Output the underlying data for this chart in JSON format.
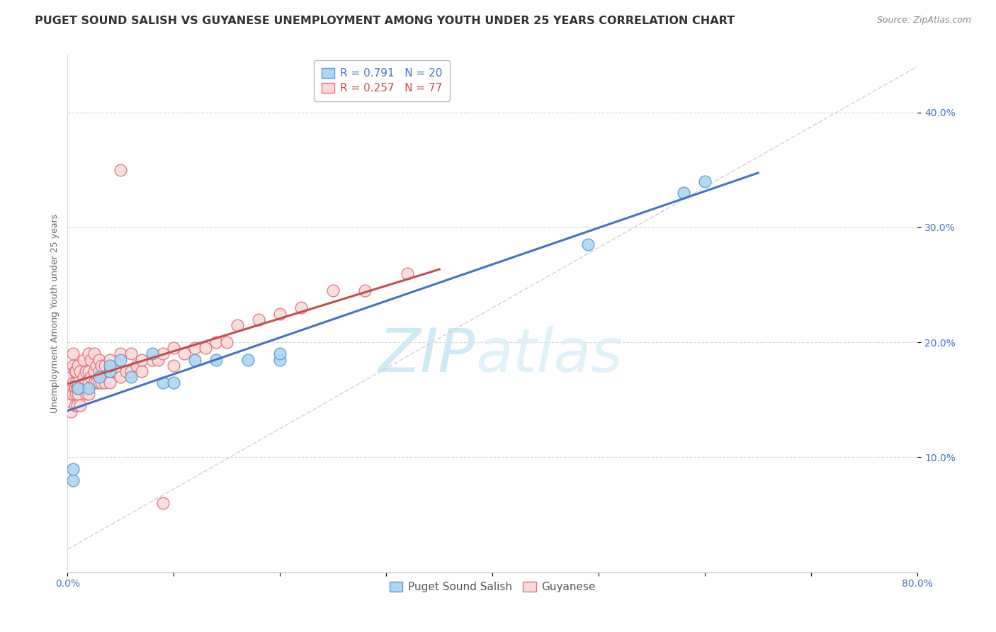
{
  "title": "PUGET SOUND SALISH VS GUYANESE UNEMPLOYMENT AMONG YOUTH UNDER 25 YEARS CORRELATION CHART",
  "source": "Source: ZipAtlas.com",
  "ylabel": "Unemployment Among Youth under 25 years",
  "legend_blue_label": "Puget Sound Salish",
  "legend_pink_label": "Guyanese",
  "legend_blue_r": "R = 0.791",
  "legend_blue_n": "N = 20",
  "legend_pink_r": "R = 0.257",
  "legend_pink_n": "N = 77",
  "blue_fill_color": "#AED6F1",
  "pink_fill_color": "#FADBD8",
  "blue_edge_color": "#5B9BD5",
  "pink_edge_color": "#E07080",
  "blue_line_color": "#4472C4",
  "pink_line_color": "#C0504D",
  "blue_text_color": "#4472C4",
  "pink_text_color": "#C0504D",
  "grey_dash_color": "#CCCCCC",
  "background_color": "#FFFFFF",
  "watermark_color": "#CEEAF7",
  "xlim": [
    0.0,
    0.8
  ],
  "ylim": [
    0.0,
    0.45
  ],
  "yticks": [
    0.1,
    0.2,
    0.3,
    0.4
  ],
  "grid_color": "#CCCCCC",
  "title_fontsize": 11.5,
  "source_fontsize": 9,
  "axis_label_fontsize": 9,
  "legend_fontsize": 11,
  "tick_fontsize": 10,
  "marker_size": 9,
  "blue_x": [
    0.005,
    0.005,
    0.01,
    0.02,
    0.03,
    0.04,
    0.04,
    0.05,
    0.06,
    0.08,
    0.09,
    0.1,
    0.12,
    0.14,
    0.17,
    0.2,
    0.2,
    0.49,
    0.58,
    0.6
  ],
  "blue_y": [
    0.08,
    0.09,
    0.16,
    0.16,
    0.17,
    0.175,
    0.18,
    0.185,
    0.17,
    0.19,
    0.165,
    0.165,
    0.185,
    0.185,
    0.185,
    0.185,
    0.19,
    0.285,
    0.33,
    0.34
  ],
  "pink_x": [
    0.003,
    0.003,
    0.003,
    0.005,
    0.005,
    0.005,
    0.005,
    0.007,
    0.007,
    0.007,
    0.008,
    0.008,
    0.008,
    0.009,
    0.009,
    0.01,
    0.01,
    0.01,
    0.012,
    0.012,
    0.012,
    0.015,
    0.015,
    0.015,
    0.017,
    0.017,
    0.018,
    0.02,
    0.02,
    0.02,
    0.02,
    0.022,
    0.022,
    0.025,
    0.025,
    0.025,
    0.027,
    0.027,
    0.03,
    0.03,
    0.03,
    0.032,
    0.032,
    0.035,
    0.035,
    0.038,
    0.04,
    0.04,
    0.04,
    0.045,
    0.05,
    0.05,
    0.055,
    0.06,
    0.06,
    0.065,
    0.07,
    0.07,
    0.08,
    0.085,
    0.09,
    0.1,
    0.1,
    0.11,
    0.12,
    0.13,
    0.14,
    0.15,
    0.16,
    0.18,
    0.2,
    0.22,
    0.25,
    0.28,
    0.32,
    0.05,
    0.09
  ],
  "pink_y": [
    0.14,
    0.155,
    0.17,
    0.155,
    0.165,
    0.18,
    0.19,
    0.145,
    0.16,
    0.175,
    0.155,
    0.165,
    0.175,
    0.145,
    0.16,
    0.155,
    0.165,
    0.18,
    0.145,
    0.16,
    0.175,
    0.16,
    0.17,
    0.185,
    0.165,
    0.175,
    0.155,
    0.155,
    0.165,
    0.175,
    0.19,
    0.17,
    0.185,
    0.165,
    0.175,
    0.19,
    0.165,
    0.18,
    0.165,
    0.175,
    0.185,
    0.165,
    0.18,
    0.165,
    0.18,
    0.17,
    0.165,
    0.175,
    0.185,
    0.175,
    0.17,
    0.19,
    0.175,
    0.175,
    0.19,
    0.18,
    0.175,
    0.185,
    0.185,
    0.185,
    0.19,
    0.18,
    0.195,
    0.19,
    0.195,
    0.195,
    0.2,
    0.2,
    0.215,
    0.22,
    0.225,
    0.23,
    0.245,
    0.245,
    0.26,
    0.35,
    0.06
  ],
  "blue_trend_xlim": [
    0.0,
    0.65
  ],
  "pink_trend_xlim": [
    0.0,
    0.35
  ]
}
